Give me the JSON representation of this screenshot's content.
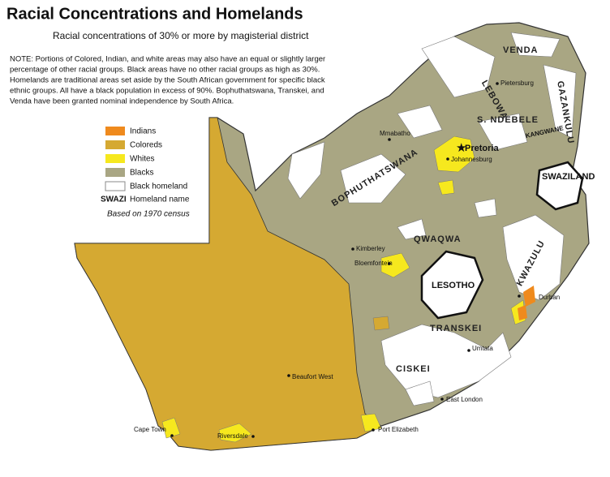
{
  "header": {
    "title": "Racial Concentrations and Homelands",
    "subtitle": "Racial concentrations of 30% or more by magisterial district"
  },
  "note": [
    "NOTE: Portions of Colored, Indian, and white areas may also have an equal or slightly larger",
    "percentage of other racial groups. Black areas have no other racial groups as high as 30%.",
    "Homelands are traditional areas set aside by the South African government for specific black",
    "ethnic groups. All have a black population in excess of 90%. Bophuthatswana, Transkei, and",
    "Venda have been granted nominal independence by South Africa."
  ],
  "legend": {
    "items": [
      "Indians",
      "Coloreds",
      "Whites",
      "Blacks",
      "Black homeland"
    ],
    "homeland_sample": "SWAZI",
    "homeland_label": "Homeland name",
    "source": "Based on 1970 census"
  },
  "homelands": [
    "VENDA",
    "GAZANKULU",
    "LEBOWA",
    "S. NDEBELE",
    "KANGWANE",
    "BOPHUTHATSWANA",
    "QWAQWA",
    "KWAZULU",
    "TRANSKEI",
    "CISKEI"
  ],
  "countries": [
    "SWAZILAND",
    "LESOTHO"
  ],
  "cities": [
    "Pietersburg",
    "Mmabatho",
    "Pretoria",
    "Johannesburg",
    "Kimberley",
    "Bloemfontein",
    "Durban",
    "Umtata",
    "East London",
    "Port Elizabeth",
    "Beaufort West",
    "Riversdale",
    "Cape Town"
  ]
}
